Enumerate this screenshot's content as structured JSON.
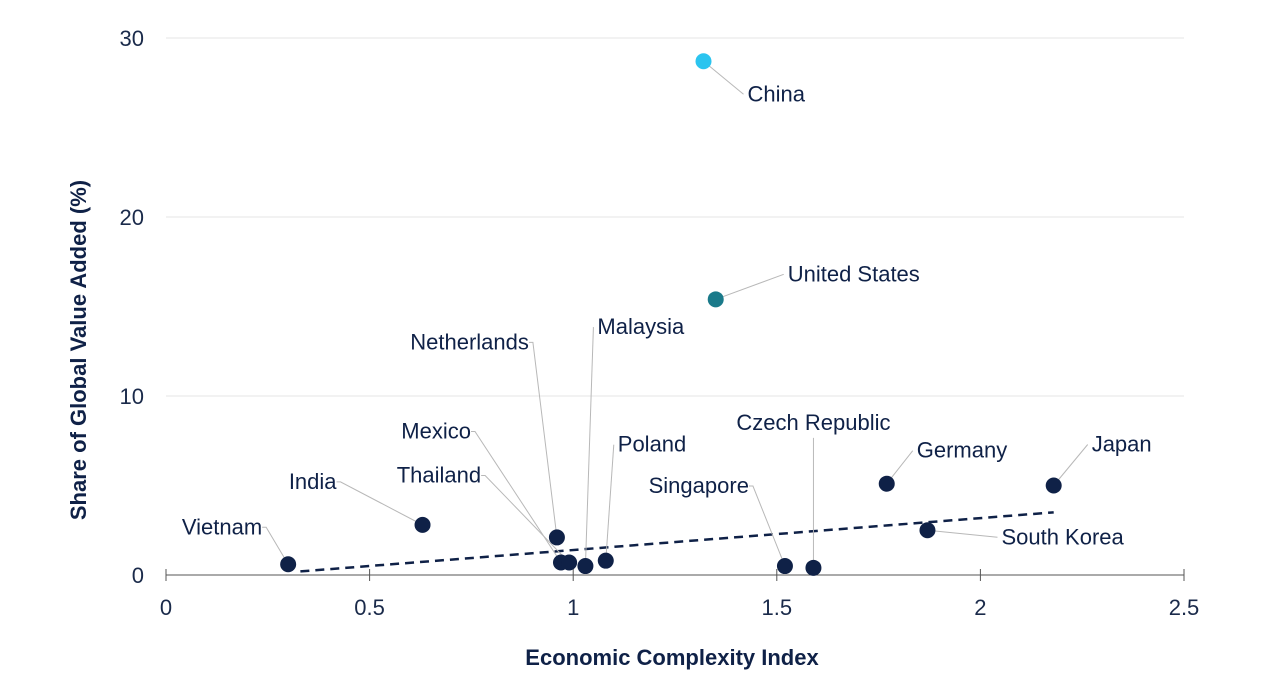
{
  "chart_data": {
    "type": "scatter",
    "xlabel": "Economic Complexity Index",
    "ylabel": "Share of Global Value Added (%)",
    "xlim": [
      0,
      2.5
    ],
    "ylim": [
      0,
      30
    ],
    "x_ticks": [
      "0",
      "0.5",
      "1",
      "1.5",
      "2",
      "2.5"
    ],
    "y_ticks": [
      "0",
      "10",
      "20",
      "30"
    ],
    "grid": "horizontal",
    "colors": {
      "default": "#0f2147",
      "China": "#2bc4ef",
      "United States": "#1a7a8a",
      "trendline": "#0f2147"
    },
    "points": [
      {
        "name": "China",
        "x": 1.32,
        "y": 28.7
      },
      {
        "name": "United States",
        "x": 1.35,
        "y": 15.4
      },
      {
        "name": "Japan",
        "x": 2.18,
        "y": 5.0
      },
      {
        "name": "Germany",
        "x": 1.77,
        "y": 5.1
      },
      {
        "name": "South Korea",
        "x": 1.87,
        "y": 2.5
      },
      {
        "name": "Czech Republic",
        "x": 1.59,
        "y": 0.4
      },
      {
        "name": "Singapore",
        "x": 1.52,
        "y": 0.5
      },
      {
        "name": "Poland",
        "x": 1.08,
        "y": 0.8
      },
      {
        "name": "Malaysia",
        "x": 1.03,
        "y": 0.5
      },
      {
        "name": "Netherlands",
        "x": 0.96,
        "y": 2.1
      },
      {
        "name": "Mexico",
        "x": 0.97,
        "y": 0.7
      },
      {
        "name": "Thailand",
        "x": 0.99,
        "y": 0.7
      },
      {
        "name": "India",
        "x": 0.63,
        "y": 2.8
      },
      {
        "name": "Vietnam",
        "x": 0.3,
        "y": 0.6
      }
    ],
    "trendline": {
      "x": [
        0.33,
        2.18
      ],
      "y": [
        0.2,
        3.5
      ]
    }
  }
}
